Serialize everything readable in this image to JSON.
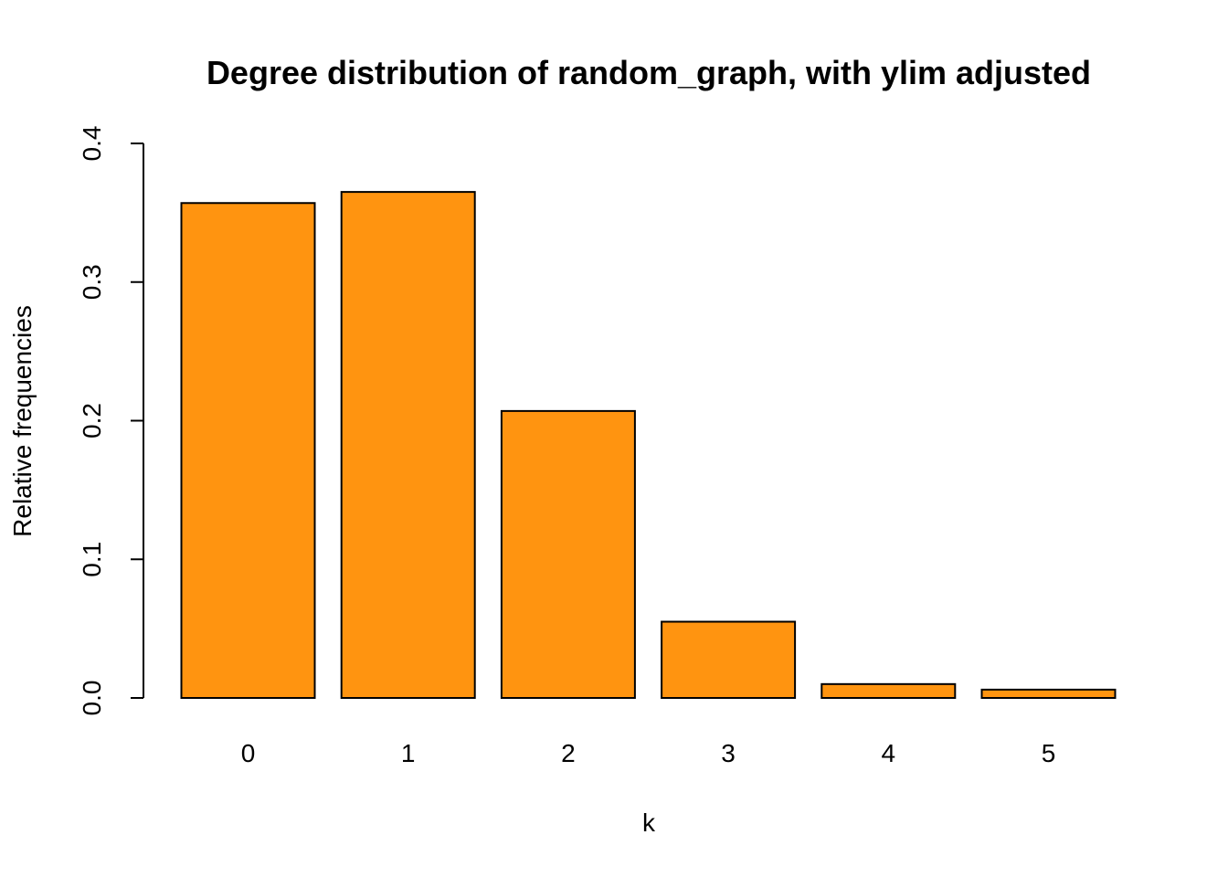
{
  "chart_data": {
    "type": "bar",
    "title": "Degree distribution of random_graph, with ylim adjusted",
    "xlabel": "k",
    "ylabel": "Relative frequencies",
    "categories": [
      "0",
      "1",
      "2",
      "3",
      "4",
      "5"
    ],
    "values": [
      0.357,
      0.365,
      0.207,
      0.055,
      0.01,
      0.006
    ],
    "ylim": [
      0,
      0.4
    ],
    "yticks": [
      "0.0",
      "0.1",
      "0.2",
      "0.3",
      "0.4"
    ],
    "grid": false,
    "bar_color": "#FF9410",
    "bar_border_color": "#000000"
  }
}
